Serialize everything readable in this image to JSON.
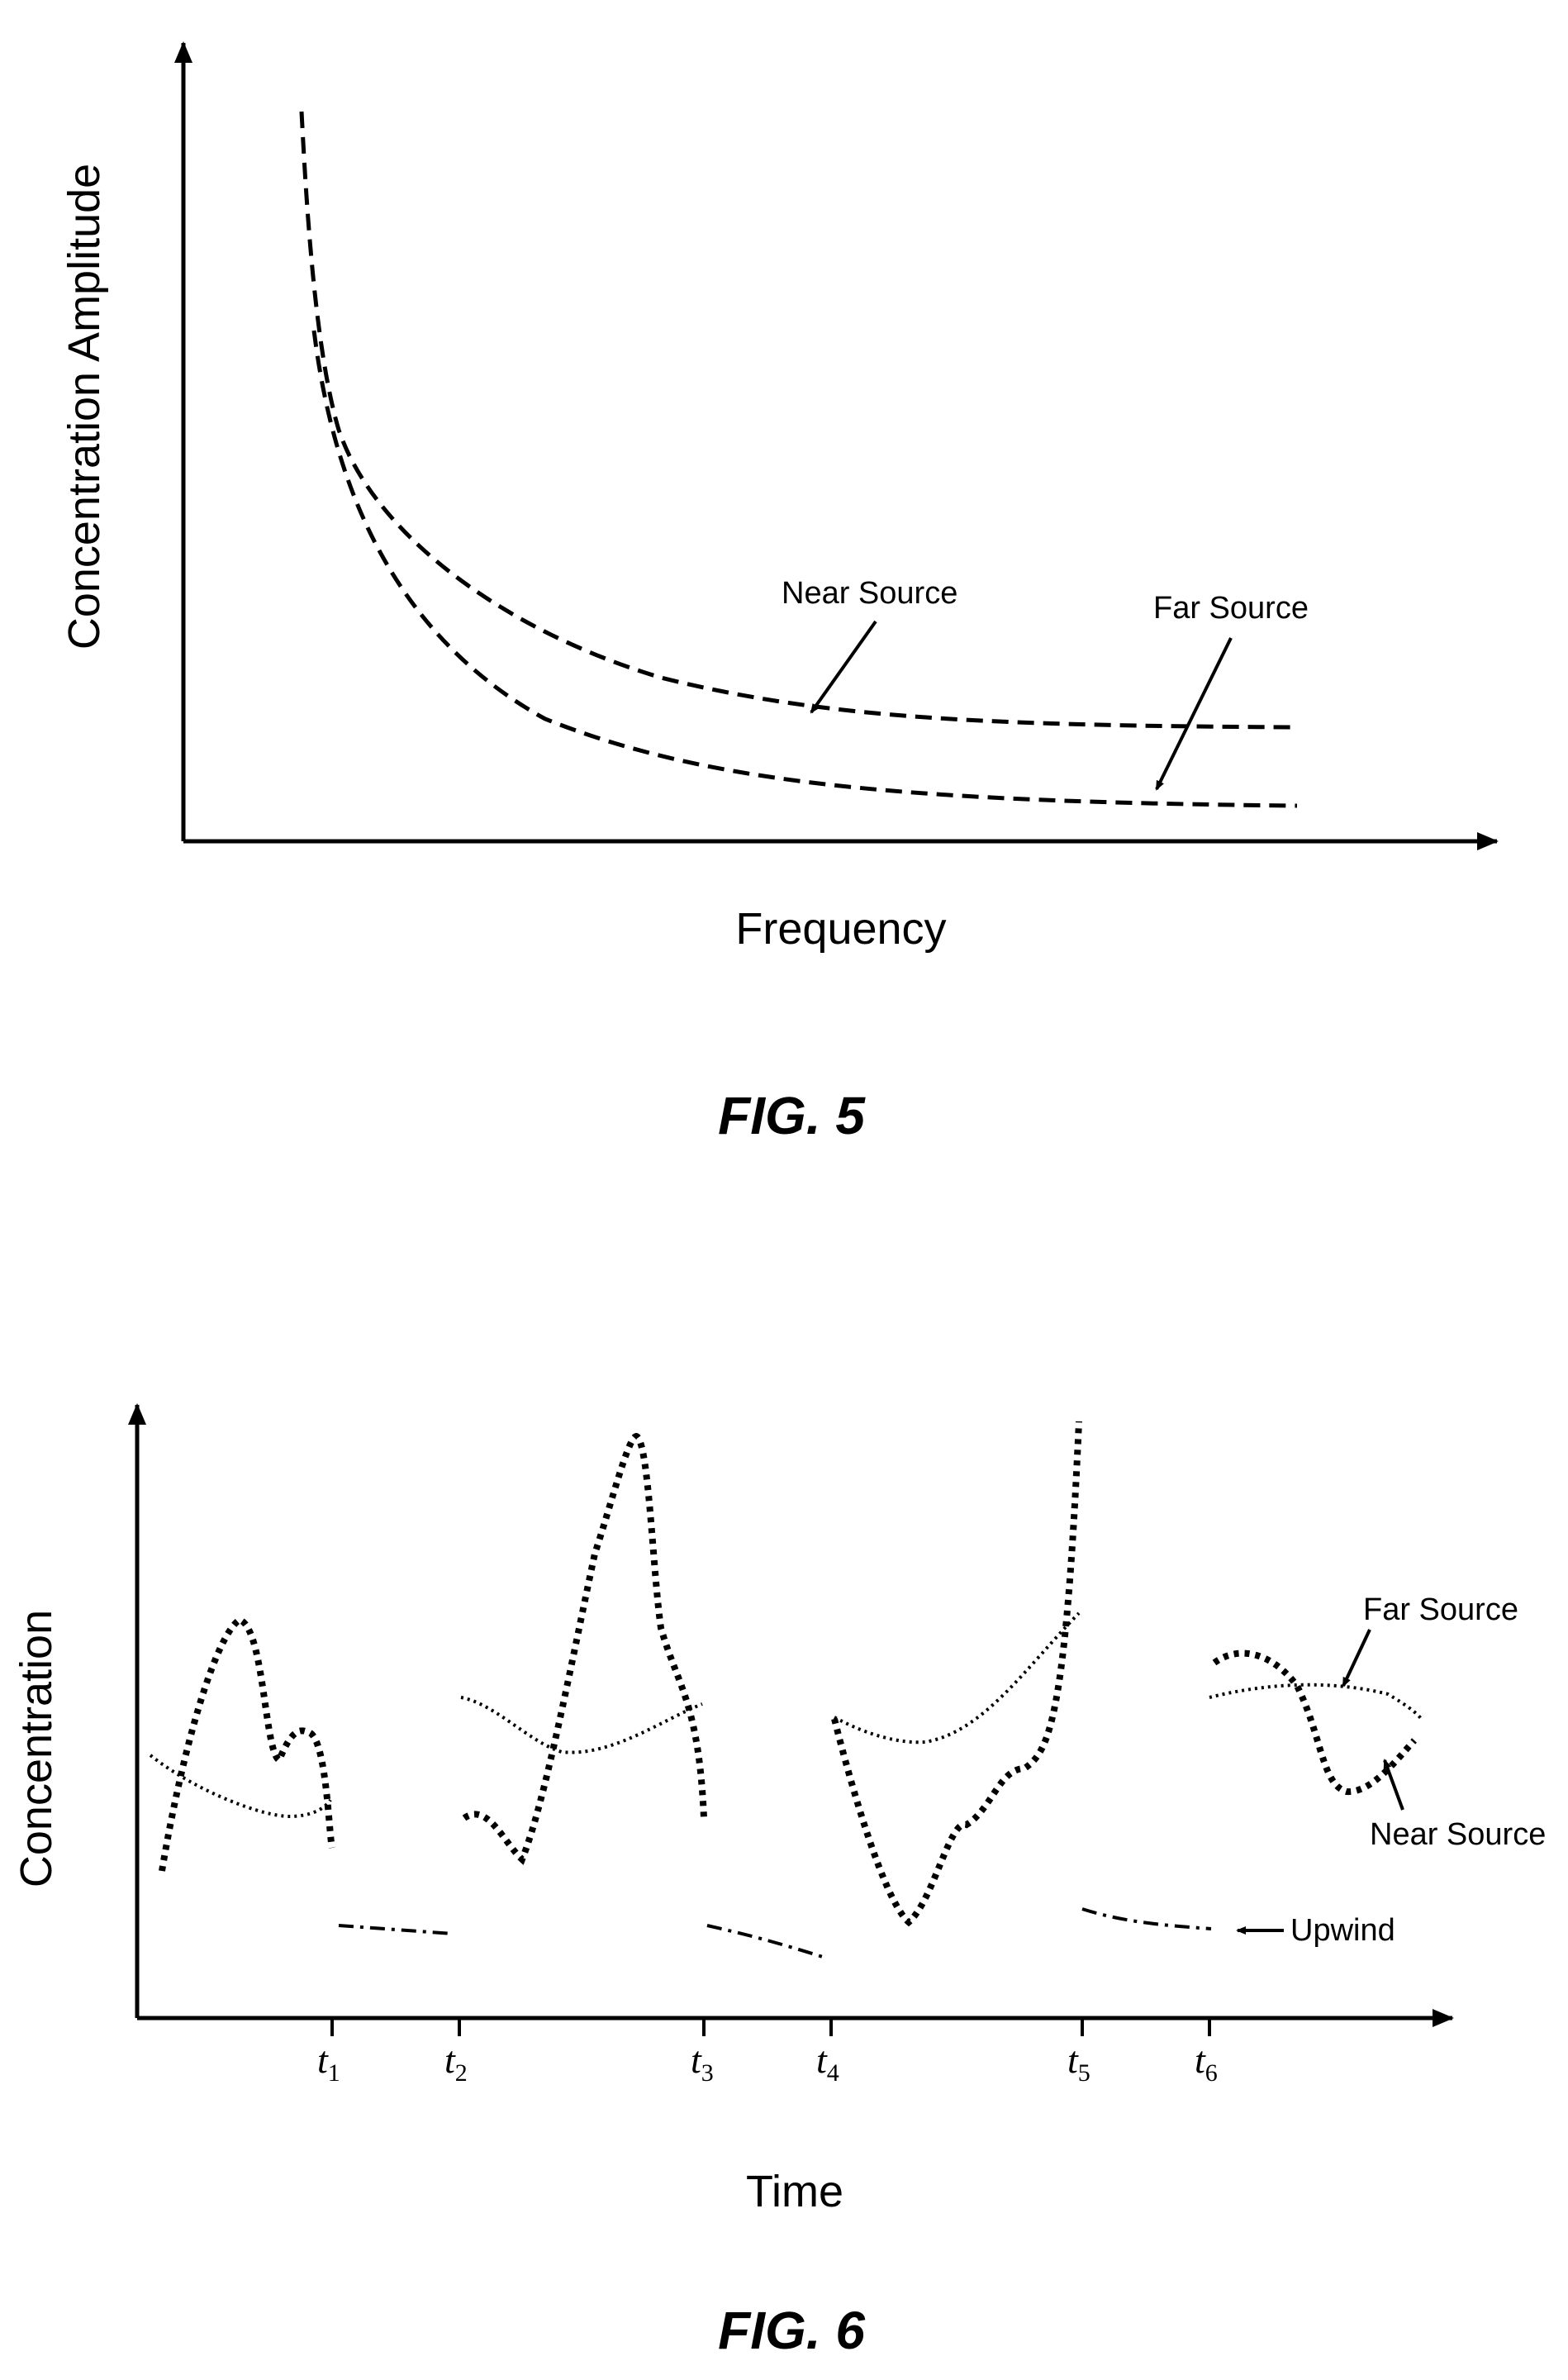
{
  "chart_data": [
    {
      "type": "line",
      "title": "FIG. 5",
      "xlabel": "Frequency",
      "ylabel": "Concentration Amplitude",
      "grid": false,
      "series": [
        {
          "name": "Near Source",
          "style": "dashed"
        },
        {
          "name": "Far Source",
          "style": "dashed"
        }
      ]
    },
    {
      "type": "line",
      "title": "FIG. 6",
      "xlabel": "Time",
      "ylabel": "Concentration",
      "grid": false,
      "x_ticks": [
        {
          "base": "t",
          "sub": "1"
        },
        {
          "base": "t",
          "sub": "2"
        },
        {
          "base": "t",
          "sub": "3"
        },
        {
          "base": "t",
          "sub": "4"
        },
        {
          "base": "t",
          "sub": "5"
        },
        {
          "base": "t",
          "sub": "6"
        }
      ],
      "series": [
        {
          "name": "Far Source",
          "style": "fine-dotted"
        },
        {
          "name": "Near Source",
          "style": "heavy-dotted"
        },
        {
          "name": "Upwind",
          "style": "dash-dot"
        }
      ]
    }
  ],
  "colors": {
    "ink": "#000000",
    "background": "#ffffff"
  }
}
